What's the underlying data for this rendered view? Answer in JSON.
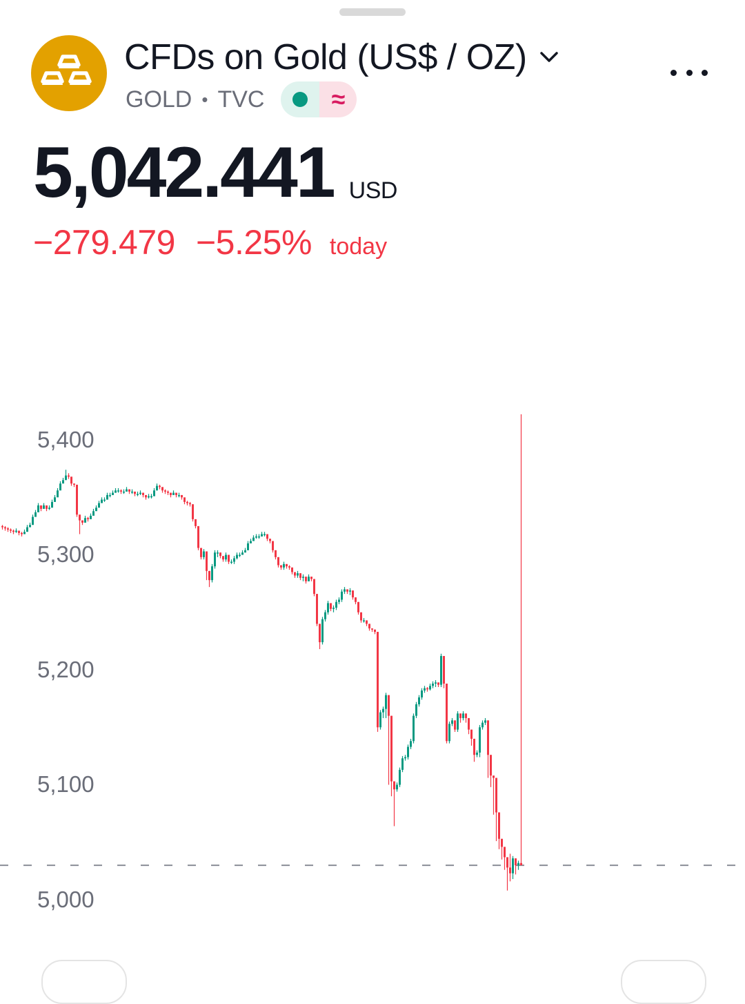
{
  "header": {
    "title": "CFDs on Gold (US$ / OZ)",
    "symbol": "GOLD",
    "separator": "•",
    "exchange": "TVC",
    "logo_icon": "gold-bars-icon",
    "more_icon": "more-horizontal-icon",
    "status_icons": [
      "market-open-dot-icon",
      "delayed-data-icon"
    ],
    "delayed_glyph": "≈"
  },
  "quote": {
    "price": "5,042.441",
    "currency": "USD",
    "change": "−279.479",
    "change_percent": "−5.25%",
    "period": "today"
  },
  "colors": {
    "up": "#089981",
    "down": "#f23645",
    "logo_bg": "#e3a100",
    "text": "#131722",
    "muted": "#6a6d78"
  },
  "chart_data": {
    "type": "candlestick",
    "y_ticks": [
      "5,400",
      "5,300",
      "5,200",
      "5,100",
      "5,000"
    ],
    "ylim": [
      4990,
      5420
    ],
    "last_price_line": 5042,
    "grid": false,
    "closes": [
      5336,
      5335,
      5334,
      5333,
      5332,
      5333,
      5331,
      5330,
      5332,
      5336,
      5338,
      5345,
      5349,
      5355,
      5352,
      5355,
      5352,
      5353,
      5358,
      5362,
      5368,
      5374,
      5377,
      5381,
      5380,
      5374,
      5373,
      5347,
      5342,
      5340,
      5344,
      5343,
      5346,
      5350,
      5353,
      5357,
      5360,
      5360,
      5364,
      5364,
      5366,
      5368,
      5368,
      5367,
      5367,
      5369,
      5367,
      5367,
      5365,
      5365,
      5366,
      5364,
      5362,
      5363,
      5363,
      5368,
      5372,
      5371,
      5368,
      5367,
      5366,
      5364,
      5366,
      5364,
      5364,
      5362,
      5358,
      5357,
      5356,
      5343,
      5337,
      5318,
      5310,
      5315,
      5298,
      5290,
      5302,
      5314,
      5314,
      5311,
      5308,
      5312,
      5306,
      5306,
      5309,
      5312,
      5312,
      5314,
      5316,
      5322,
      5324,
      5327,
      5328,
      5328,
      5330,
      5330,
      5326,
      5324,
      5316,
      5310,
      5303,
      5301,
      5304,
      5302,
      5301,
      5297,
      5294,
      5296,
      5292,
      5293,
      5289,
      5293,
      5291,
      5278,
      5252,
      5236,
      5256,
      5262,
      5270,
      5265,
      5266,
      5271,
      5273,
      5280,
      5282,
      5280,
      5281,
      5275,
      5271,
      5262,
      5255,
      5255,
      5252,
      5248,
      5247,
      5245,
      5162,
      5175,
      5178,
      5190,
      5172,
      5115,
      5108,
      5112,
      5125,
      5135,
      5136,
      5145,
      5150,
      5172,
      5182,
      5188,
      5194,
      5196,
      5195,
      5198,
      5200,
      5201,
      5199,
      5224,
      5200,
      5150,
      5165,
      5168,
      5160,
      5174,
      5170,
      5174,
      5170,
      5160,
      5152,
      5138,
      5140,
      5162,
      5166,
      5168,
      5138,
      5120,
      5118,
      5088,
      5065,
      5058,
      5049,
      5040,
      5035,
      5048,
      5042,
      5044,
      5042
    ],
    "highs": [
      5338,
      5337,
      5336,
      5335,
      5334,
      5335,
      5333,
      5332,
      5334,
      5338,
      5340,
      5347,
      5351,
      5357,
      5354,
      5357,
      5354,
      5355,
      5360,
      5364,
      5370,
      5376,
      5379,
      5386,
      5383,
      5377,
      5374,
      5371,
      5343,
      5342,
      5346,
      5345,
      5348,
      5352,
      5355,
      5359,
      5362,
      5362,
      5366,
      5366,
      5368,
      5370,
      5370,
      5369,
      5369,
      5371,
      5369,
      5369,
      5367,
      5367,
      5368,
      5366,
      5364,
      5365,
      5365,
      5370,
      5374,
      5373,
      5370,
      5369,
      5368,
      5366,
      5368,
      5366,
      5366,
      5364,
      5360,
      5359,
      5358,
      5356,
      5343,
      5336,
      5318,
      5317,
      5315,
      5298,
      5304,
      5316,
      5316,
      5314,
      5310,
      5314,
      5312,
      5308,
      5311,
      5314,
      5314,
      5316,
      5318,
      5324,
      5326,
      5329,
      5330,
      5330,
      5332,
      5332,
      5330,
      5326,
      5324,
      5316,
      5310,
      5303,
      5306,
      5304,
      5303,
      5301,
      5297,
      5298,
      5296,
      5295,
      5293,
      5295,
      5293,
      5291,
      5278,
      5252,
      5258,
      5264,
      5272,
      5270,
      5268,
      5273,
      5275,
      5282,
      5284,
      5282,
      5283,
      5281,
      5275,
      5271,
      5262,
      5257,
      5255,
      5252,
      5248,
      5247,
      5245,
      5177,
      5180,
      5192,
      5190,
      5172,
      5115,
      5114,
      5127,
      5137,
      5138,
      5147,
      5152,
      5174,
      5184,
      5190,
      5196,
      5198,
      5197,
      5200,
      5202,
      5203,
      5201,
      5226,
      5224,
      5200,
      5167,
      5170,
      5168,
      5176,
      5174,
      5176,
      5174,
      5170,
      5160,
      5152,
      5142,
      5164,
      5168,
      5170,
      5168,
      5138,
      5120,
      5118,
      5088,
      5065,
      5058,
      5049,
      5052,
      5050,
      5048,
      5046,
      5044
    ],
    "lows": [
      5334,
      5333,
      5332,
      5331,
      5330,
      5331,
      5329,
      5328,
      5330,
      5334,
      5336,
      5343,
      5347,
      5353,
      5350,
      5353,
      5350,
      5351,
      5356,
      5360,
      5366,
      5372,
      5375,
      5379,
      5378,
      5372,
      5371,
      5345,
      5330,
      5338,
      5340,
      5341,
      5344,
      5348,
      5351,
      5355,
      5358,
      5358,
      5362,
      5362,
      5364,
      5366,
      5366,
      5365,
      5365,
      5367,
      5365,
      5365,
      5363,
      5363,
      5364,
      5362,
      5360,
      5361,
      5361,
      5363,
      5368,
      5369,
      5366,
      5365,
      5364,
      5362,
      5364,
      5362,
      5362,
      5360,
      5356,
      5355,
      5354,
      5341,
      5335,
      5316,
      5308,
      5308,
      5290,
      5284,
      5288,
      5300,
      5310,
      5309,
      5306,
      5306,
      5304,
      5304,
      5304,
      5308,
      5310,
      5312,
      5314,
      5316,
      5322,
      5325,
      5326,
      5326,
      5328,
      5328,
      5324,
      5322,
      5314,
      5308,
      5301,
      5299,
      5299,
      5300,
      5299,
      5295,
      5292,
      5292,
      5290,
      5289,
      5287,
      5289,
      5289,
      5276,
      5250,
      5230,
      5234,
      5254,
      5260,
      5263,
      5262,
      5264,
      5269,
      5271,
      5278,
      5278,
      5277,
      5273,
      5269,
      5260,
      5253,
      5253,
      5250,
      5246,
      5245,
      5243,
      5158,
      5160,
      5170,
      5170,
      5112,
      5102,
      5076,
      5106,
      5110,
      5123,
      5133,
      5134,
      5143,
      5148,
      5170,
      5180,
      5186,
      5192,
      5193,
      5194,
      5196,
      5197,
      5197,
      5197,
      5196,
      5148,
      5148,
      5163,
      5158,
      5158,
      5166,
      5168,
      5166,
      5156,
      5146,
      5132,
      5136,
      5136,
      5160,
      5164,
      5118,
      5110,
      5086,
      5063,
      5056,
      5047,
      5038,
      5020,
      5028,
      5030,
      5034,
      5038
    ]
  }
}
